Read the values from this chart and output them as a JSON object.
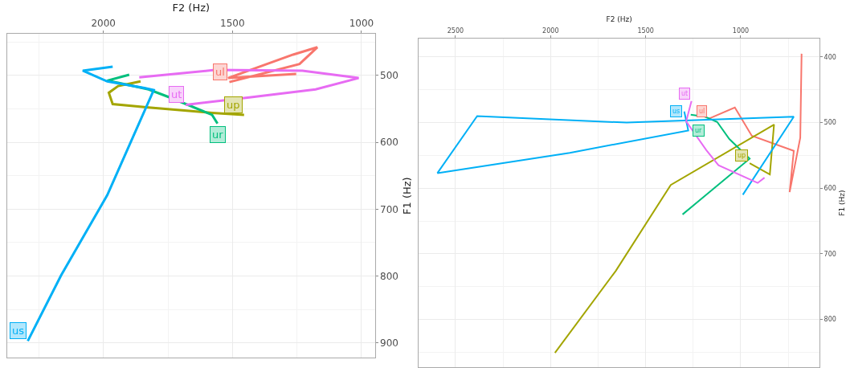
{
  "chart_data": [
    {
      "type": "line",
      "xlabel": "F2 (Hz)",
      "ylabel": "F1 (Hz)",
      "xlim": [
        2373,
        948
      ],
      "ylim": [
        922,
        438
      ],
      "xticks": [
        {
          "value": 2250,
          "label": null
        },
        2000,
        {
          "value": 1750,
          "label": null
        },
        1500,
        {
          "value": 1250,
          "label": null
        },
        1000
      ],
      "yticks": [
        {
          "value": 450,
          "label": null
        },
        500,
        {
          "value": 550,
          "label": null
        },
        600,
        {
          "value": 650,
          "label": null
        },
        700,
        {
          "value": 750,
          "label": null
        },
        800,
        {
          "value": 850,
          "label": null
        },
        900
      ],
      "grid": true,
      "series": [
        {
          "name": "ul",
          "color": "#f8766d",
          "x": [
            1512,
            1240,
            1171,
            1265,
            1517,
            1253
          ],
          "values": [
            510,
            483,
            458,
            469,
            504,
            498
          ]
        },
        {
          "name": "up",
          "color": "#a3a500",
          "x": [
            1455,
            1579,
            1825,
            1964,
            1979,
            1943,
            1856
          ],
          "values": [
            559,
            556,
            548,
            543,
            526,
            516,
            509
          ]
        },
        {
          "name": "ur",
          "color": "#00bf7d",
          "x": [
            1558,
            1579,
            1743,
            1825,
            1943,
            1985,
            1900
          ],
          "values": [
            572,
            559,
            533,
            521,
            511,
            508,
            499
          ]
        },
        {
          "name": "us",
          "color": "#00b0f6",
          "x": [
            2293,
            2164,
            1985,
            1805,
            1841,
            1985,
            2080,
            1964
          ],
          "values": [
            897,
            799,
            679,
            522,
            519,
            509,
            493,
            487
          ]
        },
        {
          "name": "ut",
          "color": "#e76bf3",
          "x": [
            1681,
            1435,
            1178,
            1011,
            1229,
            1568,
            1861
          ],
          "values": [
            544,
            533,
            521,
            504,
            493,
            492,
            503
          ]
        }
      ]
    },
    {
      "type": "line",
      "xlabel": "F2 (Hz)",
      "ylabel": "F1 (Hz)",
      "xlim": [
        2692,
        586
      ],
      "ylim": [
        873,
        372
      ],
      "xticks": [
        2500,
        {
          "value": 2250,
          "label": null
        },
        2000,
        {
          "value": 1750,
          "label": null
        },
        1500,
        {
          "value": 1250,
          "label": null
        },
        1000,
        {
          "value": 750,
          "label": null
        }
      ],
      "yticks": [
        400,
        {
          "value": 450,
          "label": null
        },
        500,
        {
          "value": 550,
          "label": null
        },
        600,
        {
          "value": 650,
          "label": null
        },
        700,
        {
          "value": 750,
          "label": null
        },
        800,
        {
          "value": 850,
          "label": null
        }
      ],
      "grid": true,
      "series": [
        {
          "name": "ul",
          "color": "#f8766d",
          "x": [
            1167,
            1031,
            942,
            721,
            743,
            687,
            680
          ],
          "values": [
            494,
            477,
            520,
            543,
            606,
            523,
            395
          ]
        },
        {
          "name": "up",
          "color": "#a3a500",
          "x": [
            953,
            847,
            825,
            1368,
            1657,
            1977
          ],
          "values": [
            562,
            579,
            503,
            595,
            726,
            851
          ]
        },
        {
          "name": "ur",
          "color": "#00bf7d",
          "x": [
            1263,
            1188,
            1124,
            1060,
            953,
            1306
          ],
          "values": [
            488,
            491,
            499,
            525,
            555,
            640
          ]
        },
        {
          "name": "us",
          "color": "#00b0f6",
          "x": [
            1297,
            1276,
            1899,
            2595,
            2386,
            1600,
            721,
            989
          ],
          "values": [
            483,
            512,
            546,
            577,
            490,
            500,
            491,
            610
          ]
        },
        {
          "name": "ut",
          "color": "#e76bf3",
          "x": [
            1259,
            1287,
            1181,
            1117,
            911,
            875
          ],
          "values": [
            467,
            498,
            542,
            565,
            592,
            584
          ]
        }
      ]
    }
  ]
}
